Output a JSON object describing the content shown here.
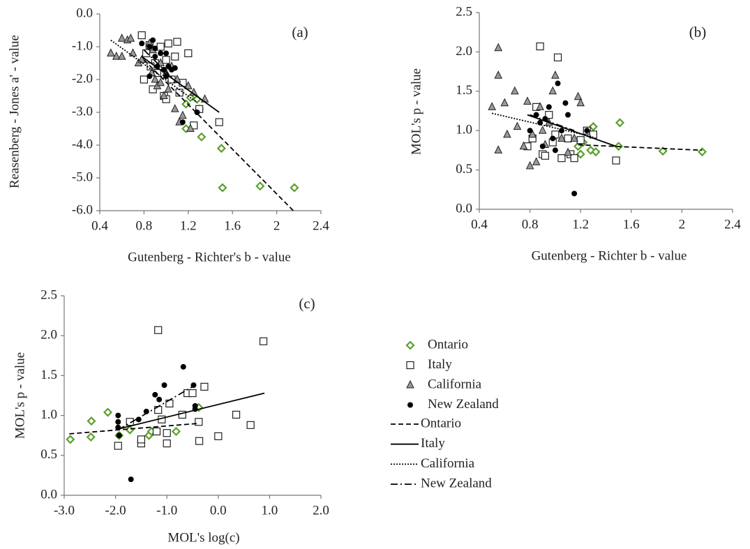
{
  "chart_data": [
    {
      "type": "scatter",
      "panel_label": "(a)",
      "x_label": "Gutenberg - Richter's b - value",
      "y_label": "Reasenberg - Jones a' - value",
      "xlim": [
        0.4,
        2.4
      ],
      "xticks": [
        0.4,
        0.8,
        1.2,
        1.6,
        2.0,
        2.4
      ],
      "ylim": [
        -6,
        0
      ],
      "yticks": [
        {
          "value": 0,
          "label": "0.0"
        },
        {
          "value": -1,
          "label": "-1.0"
        },
        {
          "value": -2,
          "label": "-2.0"
        },
        {
          "value": -3,
          "label": "-3.0"
        },
        {
          "value": -4,
          "label": "-4.0"
        },
        {
          "value": -5,
          "label": "-5.0"
        },
        {
          "value": -6,
          "label": "-6.0"
        }
      ],
      "series": [
        {
          "marker": "diamond",
          "color": "#5aa02c",
          "x": [
            1.18,
            1.22,
            1.28,
            1.18,
            1.32,
            1.5,
            1.51,
            1.85,
            2.16,
            1.3
          ],
          "y": [
            -2.75,
            -2.55,
            -2.6,
            -3.5,
            -3.75,
            -4.1,
            -5.3,
            -5.25,
            -5.3,
            -2.9
          ]
        },
        {
          "marker": "square",
          "color": "#222222",
          "x": [
            0.78,
            0.82,
            0.85,
            0.9,
            0.88,
            0.95,
            0.98,
            1.0,
            1.02,
            1.05,
            1.08,
            1.1,
            1.12,
            1.15,
            1.2,
            1.25,
            1.3,
            1.48,
            0.8,
            0.92,
            1.0,
            0.86
          ],
          "y": [
            -0.65,
            -1.2,
            -0.95,
            -1.5,
            -2.3,
            -1.0,
            -2.5,
            -1.4,
            -0.9,
            -2.0,
            -1.3,
            -0.85,
            -2.4,
            -2.1,
            -1.2,
            -3.4,
            -2.9,
            -3.3,
            -2.0,
            -1.8,
            -2.6,
            -1.6
          ]
        },
        {
          "marker": "triangle",
          "color": "#999999",
          "x": [
            0.5,
            0.55,
            0.6,
            0.65,
            0.68,
            0.6,
            0.7,
            0.75,
            0.78,
            0.85,
            0.88,
            0.9,
            0.92,
            0.95,
            0.98,
            1.0,
            1.02,
            1.05,
            1.08,
            1.1,
            1.15,
            1.2,
            1.22,
            1.25,
            1.35,
            0.95,
            0.87,
            1.12
          ],
          "y": [
            -1.2,
            -1.3,
            -0.75,
            -0.8,
            -0.75,
            -1.3,
            -1.2,
            -1.5,
            -1.4,
            -0.9,
            -1.1,
            -2.0,
            -2.2,
            -1.5,
            -2.5,
            -1.8,
            -2.3,
            -1.6,
            -2.9,
            -2.0,
            -3.1,
            -2.2,
            -3.5,
            -2.4,
            -2.6,
            -2.1,
            -1.8,
            -3.3
          ]
        },
        {
          "marker": "circle",
          "color": "#000000",
          "x": [
            0.78,
            0.85,
            0.88,
            0.9,
            0.92,
            0.95,
            0.98,
            1.0,
            1.02,
            1.05,
            1.08,
            0.85,
            1.15,
            1.28,
            1.0,
            0.9
          ],
          "y": [
            -0.9,
            -1.0,
            -0.8,
            -1.3,
            -1.6,
            -1.2,
            -1.7,
            -1.9,
            -1.6,
            -1.7,
            -1.65,
            -1.9,
            -3.3,
            -3.0,
            -1.2,
            -1.05
          ]
        }
      ],
      "trendlines": [
        {
          "dash": "dashed",
          "x": [
            0.8,
            2.15
          ],
          "y": [
            -1.4,
            -6.0
          ]
        },
        {
          "dash": "solid",
          "x": [
            0.78,
            1.48
          ],
          "y": [
            -1.3,
            -3.0
          ]
        },
        {
          "dash": "dotted",
          "x": [
            0.5,
            1.28
          ],
          "y": [
            -0.8,
            -2.7
          ]
        },
        {
          "dash": "dashdot",
          "x": [
            0.8,
            1.1
          ],
          "y": [
            -1.1,
            -2.1
          ]
        }
      ]
    },
    {
      "type": "scatter",
      "panel_label": "(b)",
      "x_label": "Gutenberg - Richter b - value",
      "y_label": "MOL's p - value",
      "xlim": [
        0.4,
        2.4
      ],
      "xticks": [
        0.4,
        0.8,
        1.2,
        1.6,
        2.0,
        2.4
      ],
      "ylim": [
        0,
        2.5
      ],
      "yticks": [
        {
          "value": 0,
          "label": "0.0"
        },
        0.5,
        {
          "value": 1,
          "label": "1.0"
        },
        1.5,
        {
          "value": 2,
          "label": "2.0"
        },
        2.5
      ],
      "series": [
        {
          "marker": "diamond",
          "color": "#5aa02c",
          "x": [
            1.18,
            1.2,
            1.22,
            1.28,
            1.3,
            1.32,
            1.5,
            1.51,
            1.85,
            2.16
          ],
          "y": [
            0.8,
            0.7,
            0.85,
            0.75,
            1.05,
            0.73,
            0.8,
            1.1,
            0.74,
            0.73
          ]
        },
        {
          "marker": "square",
          "color": "#222222",
          "x": [
            0.78,
            0.82,
            0.88,
            0.9,
            0.95,
            0.98,
            1.0,
            1.02,
            1.05,
            1.1,
            1.12,
            1.15,
            1.2,
            1.25,
            1.3,
            1.48,
            0.85,
            0.92
          ],
          "y": [
            0.8,
            0.9,
            2.07,
            0.7,
            1.2,
            0.85,
            0.95,
            1.93,
            0.65,
            0.9,
            0.7,
            0.65,
            0.88,
            1.0,
            0.95,
            0.62,
            1.3,
            0.68
          ]
        },
        {
          "marker": "triangle",
          "color": "#999999",
          "x": [
            0.5,
            0.55,
            0.55,
            0.55,
            0.6,
            0.62,
            0.68,
            0.7,
            0.75,
            0.78,
            0.8,
            0.85,
            0.88,
            0.9,
            0.95,
            0.98,
            1.0,
            1.05,
            1.1,
            1.15,
            1.18,
            1.2,
            0.82,
            0.92
          ],
          "y": [
            1.3,
            0.75,
            2.05,
            1.7,
            1.35,
            0.95,
            1.5,
            1.05,
            0.8,
            1.37,
            0.55,
            0.6,
            1.3,
            1.0,
            1.1,
            1.5,
            1.7,
            0.9,
            0.72,
            0.9,
            1.43,
            1.35,
            0.95,
            0.82
          ]
        },
        {
          "marker": "circle",
          "color": "#000000",
          "x": [
            0.8,
            0.85,
            0.88,
            0.9,
            0.92,
            0.95,
            0.98,
            1.02,
            1.05,
            1.08,
            1.1,
            1.15,
            1.25,
            1.0
          ],
          "y": [
            1.0,
            1.2,
            1.1,
            0.8,
            1.15,
            1.3,
            0.9,
            1.6,
            1.0,
            1.35,
            1.2,
            0.2,
            1.0,
            0.75
          ]
        }
      ],
      "trendlines": [
        {
          "dash": "dashed",
          "x": [
            1.18,
            2.16
          ],
          "y": [
            0.82,
            0.75
          ]
        },
        {
          "dash": "solid",
          "x": [
            0.78,
            1.48
          ],
          "y": [
            1.2,
            0.8
          ]
        },
        {
          "dash": "dotted",
          "x": [
            0.5,
            1.3
          ],
          "y": [
            1.22,
            0.92
          ]
        },
        {
          "dash": "dashdot",
          "x": [
            0.8,
            1.15
          ],
          "y": [
            1.2,
            1.0
          ]
        }
      ]
    },
    {
      "type": "scatter",
      "panel_label": "(c)",
      "x_label": "MOL's log(c)",
      "y_label": "MOL's p - value",
      "xlim": [
        -3,
        2
      ],
      "xticks": [
        {
          "value": -3,
          "label": "-3.0"
        },
        {
          "value": -2,
          "label": "-2.0"
        },
        {
          "value": -1,
          "label": "-1.0"
        },
        {
          "value": 0,
          "label": "0.0"
        },
        {
          "value": 1,
          "label": "1.0"
        },
        {
          "value": 2,
          "label": "2.0"
        }
      ],
      "ylim": [
        0,
        2.5
      ],
      "yticks": [
        {
          "value": 0,
          "label": "0.0"
        },
        0.5,
        {
          "value": 1,
          "label": "1.0"
        },
        1.5,
        {
          "value": 2,
          "label": "2.0"
        },
        2.5
      ],
      "series": [
        {
          "name": "Ontario",
          "marker": "diamond",
          "color": "#5aa02c",
          "x": [
            -2.88,
            -2.48,
            -2.47,
            -2.15,
            -1.93,
            -1.72,
            -1.35,
            -1.3,
            -0.82,
            -0.38
          ],
          "y": [
            0.7,
            0.73,
            0.93,
            1.04,
            0.75,
            0.82,
            0.75,
            0.8,
            0.8,
            1.1
          ]
        },
        {
          "name": "Italy",
          "marker": "square",
          "color": "#222222",
          "x": [
            -1.95,
            -1.5,
            -1.5,
            -1.72,
            -1.17,
            -1.17,
            -1.1,
            -1.0,
            -0.95,
            -0.7,
            -0.6,
            -0.5,
            -0.38,
            -0.37,
            -0.27,
            0.0,
            0.35,
            0.63,
            0.88,
            -1.0,
            -1.2
          ],
          "y": [
            0.62,
            0.65,
            0.7,
            0.92,
            2.07,
            1.07,
            0.95,
            0.78,
            1.15,
            1.01,
            1.28,
            1.28,
            0.92,
            0.68,
            1.36,
            0.74,
            1.01,
            0.88,
            1.93,
            0.65,
            0.8
          ]
        },
        {
          "name": "California",
          "marker": "triangle",
          "color": "#999999",
          "x": [],
          "y": []
        },
        {
          "name": "New Zealand",
          "marker": "circle",
          "color": "#000000",
          "x": [
            -1.95,
            -1.95,
            -1.95,
            -1.93,
            -1.7,
            -1.55,
            -1.4,
            -1.23,
            -1.15,
            -1.05,
            -0.68,
            -0.48,
            -0.45,
            -0.45
          ],
          "y": [
            1.0,
            0.92,
            0.85,
            0.75,
            0.2,
            0.95,
            1.05,
            1.26,
            1.2,
            1.38,
            1.61,
            1.38,
            1.12,
            1.08
          ]
        }
      ],
      "trendlines": [
        {
          "name": "Ontario",
          "dash": "dashed",
          "x": [
            -2.9,
            -0.4
          ],
          "y": [
            0.77,
            0.9
          ]
        },
        {
          "name": "Italy",
          "dash": "solid",
          "x": [
            -1.95,
            0.9
          ],
          "y": [
            0.83,
            1.28
          ]
        },
        {
          "name": "California",
          "dash": "dotted",
          "x": [],
          "y": []
        },
        {
          "name": "New Zealand",
          "dash": "dashdot",
          "x": [
            -1.95,
            -0.45
          ],
          "y": [
            0.82,
            1.38
          ]
        }
      ]
    }
  ]
}
